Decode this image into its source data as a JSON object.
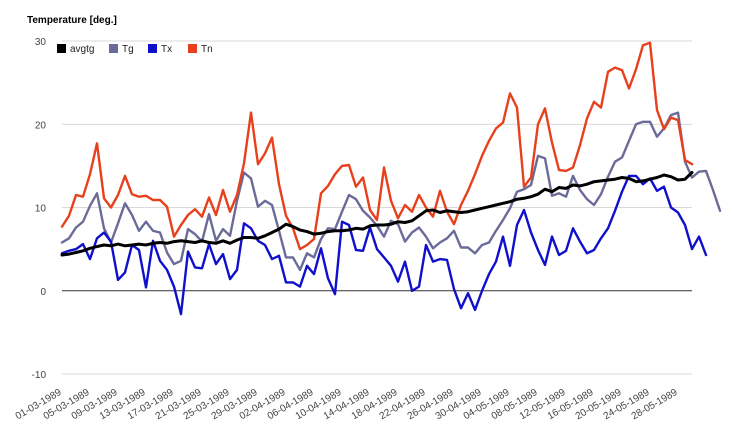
{
  "chart_data": {
    "type": "line",
    "title": "",
    "ylabel": "Temperature [deg.]",
    "xlabel": "",
    "ylim": [
      -10,
      30
    ],
    "yticks": [
      -10,
      0,
      10,
      20,
      30
    ],
    "grid": true,
    "legend_position": "top-left",
    "start_date": "1989-03-01",
    "xtick_labels": [
      "01-03-1989",
      "05-03-1989",
      "09-03-1989",
      "13-03-1989",
      "17-03-1989",
      "21-03-1989",
      "25-03-1989",
      "29-03-1989",
      "02-04-1989",
      "06-04-1989",
      "10-04-1989",
      "14-04-1989",
      "18-04-1989",
      "22-04-1989",
      "26-04-1989",
      "30-04-1989",
      "04-05-1989",
      "08-05-1989",
      "12-05-1989",
      "16-05-1989",
      "20-05-1989",
      "24-05-1989",
      "28-05-1989"
    ],
    "series": [
      {
        "name": "avgtg",
        "color": "#000000",
        "values": [
          4.3,
          4.4,
          4.6,
          4.8,
          5.1,
          5.3,
          5.5,
          5.4,
          5.6,
          5.4,
          5.5,
          5.6,
          5.5,
          5.7,
          5.8,
          5.7,
          5.9,
          6.0,
          5.9,
          5.8,
          6.0,
          5.8,
          5.7,
          6.0,
          5.7,
          6.1,
          6.4,
          6.4,
          6.3,
          6.6,
          7.0,
          7.4,
          8.0,
          7.7,
          7.3,
          7.1,
          6.8,
          6.9,
          7.1,
          7.2,
          7.2,
          7.3,
          7.5,
          7.4,
          7.8,
          7.9,
          7.9,
          8.0,
          8.3,
          8.2,
          8.4,
          9.0,
          9.6,
          9.7,
          9.4,
          9.6,
          9.5,
          9.4,
          9.5,
          9.7,
          9.9,
          10.1,
          10.3,
          10.5,
          10.7,
          11.0,
          11.1,
          11.3,
          11.6,
          12.2,
          11.9,
          12.4,
          12.3,
          12.7,
          12.6,
          12.8,
          13.1,
          13.2,
          13.3,
          13.4,
          13.6,
          13.5,
          13.1,
          13.2,
          13.4,
          13.6,
          13.9,
          13.7,
          13.3,
          13.4,
          14.2
        ]
      },
      {
        "name": "Tg",
        "color": "#6b6b99",
        "values": [
          5.8,
          6.3,
          7.6,
          8.3,
          10.2,
          11.7,
          7.5,
          5.8,
          8.1,
          10.5,
          9.1,
          7.2,
          8.3,
          7.2,
          7.0,
          4.6,
          3.2,
          3.6,
          7.4,
          6.8,
          5.9,
          9.2,
          6.0,
          7.4,
          6.6,
          10.8,
          14.2,
          13.5,
          10.1,
          10.8,
          10.3,
          7.2,
          4.0,
          4.0,
          2.5,
          4.5,
          4.0,
          6.2,
          7.5,
          7.4,
          9.5,
          11.5,
          11.0,
          9.6,
          8.8,
          7.8,
          6.5,
          8.4,
          8.0,
          5.9,
          7.0,
          7.6,
          6.5,
          5.1,
          5.8,
          6.3,
          7.2,
          5.2,
          5.2,
          4.5,
          5.5,
          5.8,
          7.2,
          8.5,
          9.9,
          11.9,
          12.2,
          12.7,
          16.2,
          15.9,
          11.4,
          11.7,
          11.3,
          13.8,
          12.1,
          11.0,
          10.3,
          11.6,
          13.7,
          15.5,
          16.0,
          18.0,
          20.0,
          20.3,
          20.3,
          18.5,
          19.5,
          21.1,
          21.4,
          15.5,
          13.6,
          14.3,
          14.4,
          12.1,
          9.6
        ]
      },
      {
        "name": "Tx",
        "color": "#1010cc",
        "values": [
          4.5,
          4.8,
          5.0,
          5.6,
          3.8,
          6.3,
          7.0,
          5.9,
          1.3,
          2.2,
          5.5,
          4.9,
          0.4,
          6.0,
          3.6,
          2.5,
          0.5,
          -2.8,
          4.7,
          2.8,
          2.7,
          5.6,
          3.2,
          4.4,
          1.4,
          2.5,
          8.1,
          7.5,
          6.0,
          5.5,
          3.8,
          4.2,
          1.0,
          1.0,
          0.5,
          3.0,
          2.0,
          5.1,
          1.5,
          -0.4,
          8.3,
          7.9,
          4.9,
          4.8,
          7.6,
          5.0,
          4.0,
          3.0,
          1.1,
          3.5,
          0.0,
          0.5,
          5.5,
          3.5,
          3.8,
          3.7,
          0.2,
          -2.1,
          -0.3,
          -2.3,
          0.0,
          2.0,
          3.5,
          6.5,
          3.0,
          7.9,
          9.7,
          7.0,
          4.9,
          3.1,
          6.5,
          4.3,
          4.8,
          7.5,
          5.9,
          4.5,
          4.9,
          6.3,
          7.5,
          9.6,
          11.9,
          13.8,
          13.8,
          12.8,
          13.5,
          12.0,
          12.5,
          10.0,
          9.4,
          7.9,
          5.0,
          6.5,
          4.3
        ]
      },
      {
        "name": "Tn",
        "color": "#e8401c",
        "values": [
          7.7,
          9.0,
          11.5,
          11.3,
          14.0,
          17.7,
          11.1,
          10.0,
          11.5,
          13.8,
          11.6,
          11.3,
          11.4,
          10.9,
          10.9,
          10.1,
          6.5,
          7.9,
          9.1,
          9.8,
          8.9,
          11.2,
          9.1,
          12.1,
          9.5,
          11.5,
          15.3,
          21.4,
          15.2,
          16.5,
          18.4,
          12.8,
          9.0,
          7.5,
          5.0,
          5.5,
          6.2,
          11.7,
          12.6,
          14.0,
          15.0,
          15.1,
          12.5,
          13.6,
          9.7,
          8.5,
          14.8,
          10.8,
          8.7,
          10.3,
          9.5,
          11.5,
          10.0,
          8.9,
          12.0,
          9.5,
          8.0,
          10.3,
          12.0,
          14.0,
          16.2,
          18.0,
          19.5,
          20.2,
          23.7,
          22.0,
          12.5,
          13.6,
          20.0,
          21.9,
          17.8,
          14.5,
          14.4,
          14.8,
          17.5,
          20.7,
          22.7,
          22.0,
          26.3,
          26.8,
          26.5,
          24.3,
          26.6,
          29.5,
          29.8,
          21.7,
          19.4,
          20.8,
          20.5,
          15.7,
          15.2
        ]
      }
    ]
  }
}
